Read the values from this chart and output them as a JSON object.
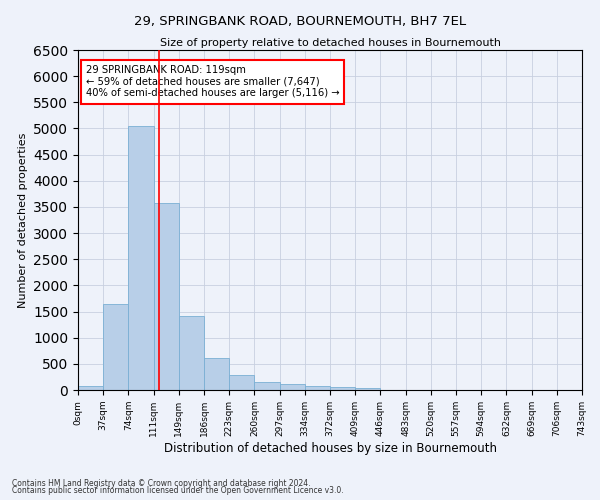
{
  "title": "29, SPRINGBANK ROAD, BOURNEMOUTH, BH7 7EL",
  "subtitle": "Size of property relative to detached houses in Bournemouth",
  "xlabel": "Distribution of detached houses by size in Bournemouth",
  "ylabel": "Number of detached properties",
  "bar_values": [
    75,
    1650,
    5050,
    3580,
    1420,
    620,
    290,
    145,
    110,
    75,
    65,
    30,
    0,
    0,
    0,
    0,
    0,
    0,
    0,
    0
  ],
  "bin_labels": [
    "0sqm",
    "37sqm",
    "74sqm",
    "111sqm",
    "149sqm",
    "186sqm",
    "223sqm",
    "260sqm",
    "297sqm",
    "334sqm",
    "372sqm",
    "409sqm",
    "446sqm",
    "483sqm",
    "520sqm",
    "557sqm",
    "594sqm",
    "632sqm",
    "669sqm",
    "706sqm",
    "743sqm"
  ],
  "bar_color": "#b8cfe8",
  "bar_edge_color": "#7aafd4",
  "property_size": 119,
  "property_label": "29 SPRINGBANK ROAD: 119sqm",
  "annotation_line1": "← 59% of detached houses are smaller (7,647)",
  "annotation_line2": "40% of semi-detached houses are larger (5,116) →",
  "vline_color": "red",
  "vline_x": 119,
  "bin_width": 37,
  "ylim": [
    0,
    6500
  ],
  "grid_color": "#c8d0e0",
  "background_color": "#eef2fa",
  "footnote1": "Contains HM Land Registry data © Crown copyright and database right 2024.",
  "footnote2": "Contains public sector information licensed under the Open Government Licence v3.0."
}
